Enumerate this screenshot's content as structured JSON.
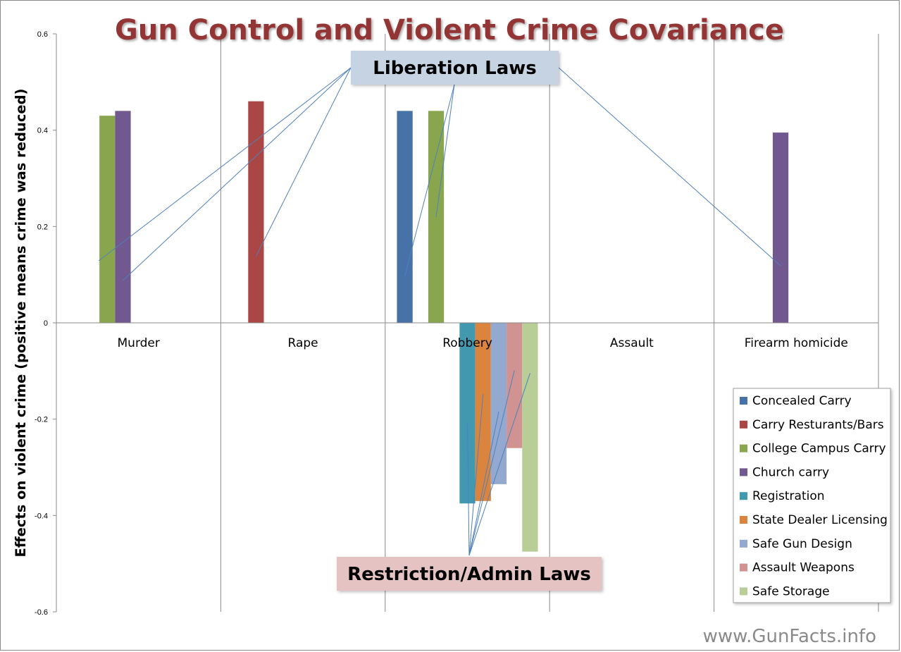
{
  "chart_data": {
    "type": "bar",
    "title": "Gun Control and Violent Crime Covariance",
    "ylabel": "Effects on violent crime (positive means crime was reduced)",
    "xlabel": "",
    "categories": [
      "Murder",
      "Rape",
      "Robbery",
      "Assault",
      "Firearm homicide"
    ],
    "ylim": [
      -0.6,
      0.6
    ],
    "yticks": [
      "0.6",
      "0.4",
      "0.2",
      "0",
      "-0.2",
      "-0.4",
      "-0.6"
    ],
    "grid": "vertical category dividers",
    "legend_position": "bottom-right",
    "series": [
      {
        "name": "Concealed Carry",
        "color": "#4672a8",
        "values": [
          null,
          null,
          0.44,
          null,
          null
        ]
      },
      {
        "name": "Carry Resturants/Bars",
        "color": "#aa4643",
        "values": [
          null,
          0.46,
          null,
          null,
          null
        ]
      },
      {
        "name": "College Campus Carry",
        "color": "#89a54e",
        "values": [
          0.43,
          null,
          0.44,
          null,
          null
        ]
      },
      {
        "name": "Church carry",
        "color": "#71588f",
        "values": [
          0.44,
          null,
          null,
          null,
          0.395
        ]
      },
      {
        "name": "Registration",
        "color": "#4198af",
        "values": [
          null,
          null,
          -0.375,
          null,
          null
        ]
      },
      {
        "name": "State Dealer Licensing",
        "color": "#db843d",
        "values": [
          null,
          null,
          -0.37,
          null,
          null
        ]
      },
      {
        "name": "Safe Gun Design",
        "color": "#93a9cf",
        "values": [
          null,
          null,
          -0.335,
          null,
          null
        ]
      },
      {
        "name": "Assault Weapons",
        "color": "#d19392",
        "values": [
          null,
          null,
          -0.26,
          null,
          null
        ]
      },
      {
        "name": "Safe Storage",
        "color": "#b9cd96",
        "values": [
          null,
          null,
          -0.475,
          null,
          null
        ]
      }
    ],
    "annotations": {
      "liberation": "Liberation Laws",
      "restriction": "Restriction/Admin Laws"
    }
  },
  "watermark": "www.GunFacts.info",
  "colors": {
    "title": "#943634",
    "annotation_top_bg": "#c5d3e3",
    "annotation_bottom_bg": "#e6c3c3",
    "leader_line": "#4f81bd"
  }
}
